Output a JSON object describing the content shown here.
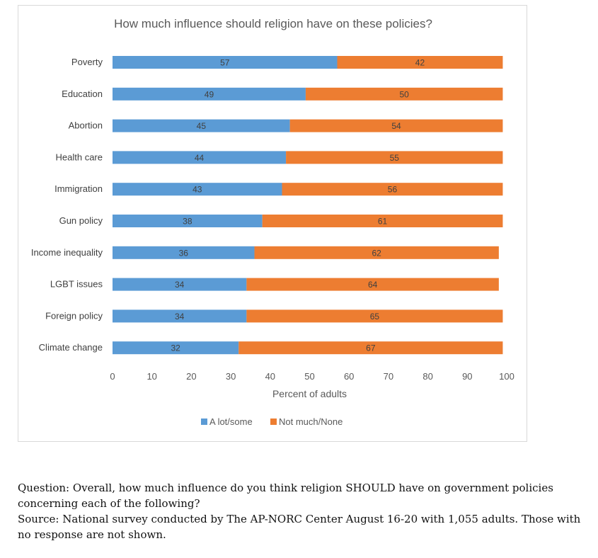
{
  "chart_data": {
    "type": "bar",
    "orientation": "horizontal",
    "stacked": true,
    "title": "How much influence should religion have on these policies?",
    "xlabel": "Percent of adults",
    "ylabel": "",
    "xlim": [
      0,
      100
    ],
    "xticks": [
      "0",
      "10",
      "20",
      "30",
      "40",
      "50",
      "60",
      "70",
      "80",
      "90",
      "100"
    ],
    "categories": [
      "Poverty",
      "Education",
      "Abortion",
      "Health care",
      "Immigration",
      "Gun policy",
      "Income inequality",
      "LGBT issues",
      "Foreign policy",
      "Climate change"
    ],
    "series": [
      {
        "name": "A lot/some",
        "color": "#5b9bd5",
        "values": [
          57,
          49,
          45,
          44,
          43,
          38,
          36,
          34,
          34,
          32
        ]
      },
      {
        "name": "Not much/None",
        "color": "#ed7d31",
        "values": [
          42,
          50,
          54,
          55,
          56,
          61,
          62,
          64,
          65,
          67
        ]
      }
    ],
    "legend_position": "bottom",
    "grid": false
  },
  "notes": {
    "question": "Question: Overall, how much influence do you think religion SHOULD have on government policies concerning each of the following?",
    "source": "Source: National survey conducted by The AP-NORC Center August 16-20 with 1,055 adults. Those with no response are not shown."
  }
}
